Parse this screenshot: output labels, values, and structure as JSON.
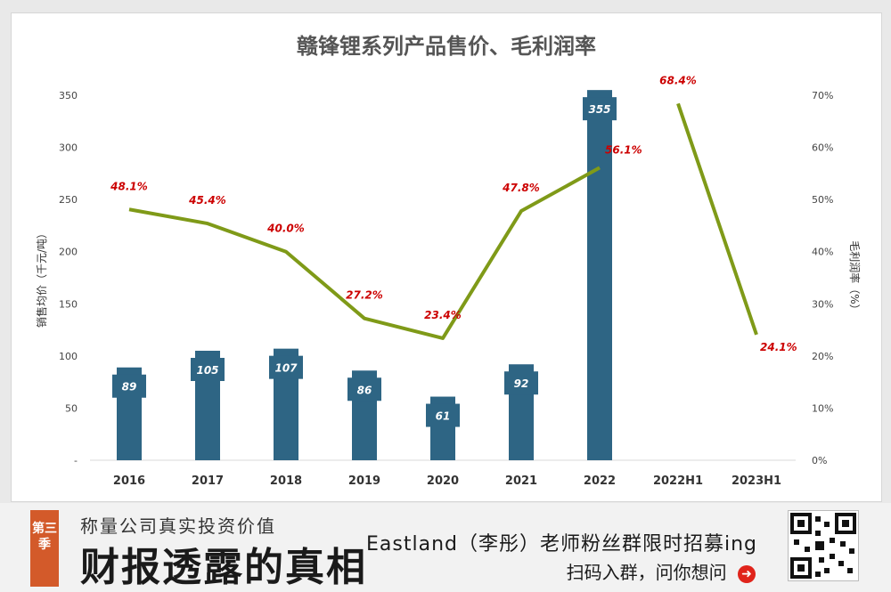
{
  "chart_data": {
    "type": "bar+line",
    "title": "赣锋锂系列产品售价、毛利润率",
    "ylabel_left": "销售均价（千元/吨）",
    "ylabel_right": "毛利润率（%）",
    "categories": [
      "2016",
      "2017",
      "2018",
      "2019",
      "2020",
      "2021",
      "2022",
      "2022H1",
      "2023H1"
    ],
    "bar_series": {
      "name": "",
      "values": [
        89,
        105,
        107,
        86,
        61,
        92,
        355,
        null,
        null
      ],
      "labels": [
        "89",
        "105",
        "107",
        "86",
        "61",
        "92",
        "355",
        "",
        ""
      ]
    },
    "line_series": {
      "name": "",
      "values": [
        48.1,
        45.4,
        40.0,
        27.2,
        23.4,
        47.8,
        56.1,
        68.4,
        24.1
      ],
      "labels": [
        "48.1%",
        "45.4%",
        "40.0%",
        "27.2%",
        "23.4%",
        "47.8%",
        "56.1%",
        "68.4%",
        "24.1%"
      ]
    },
    "left_ticks": [
      "-",
      "50",
      "100",
      "150",
      "200",
      "250",
      "300",
      "350"
    ],
    "right_ticks": [
      "0%",
      "10%",
      "20%",
      "30%",
      "40%",
      "50%",
      "60%",
      "70%"
    ],
    "ylim_left": [
      0,
      350
    ],
    "ylim_right": [
      0,
      70
    ],
    "line_breaks_after": [
      "2022"
    ],
    "colors": {
      "bar": "#2e6584",
      "line": "#7f9a18",
      "line_label": "#cc0000",
      "bar_label": "#ffffff"
    }
  },
  "footer": {
    "season_badge": "第三季",
    "tagline": "称量公司真实投资价值",
    "big_title": "财报透露的真相",
    "promo": "Eastland（李彤）老师粉丝群限时招募ing",
    "scan_text": "扫码入群，问你想问",
    "arrow_icon": "right-arrow-circle-icon",
    "qr_icon": "qr-code-icon"
  }
}
